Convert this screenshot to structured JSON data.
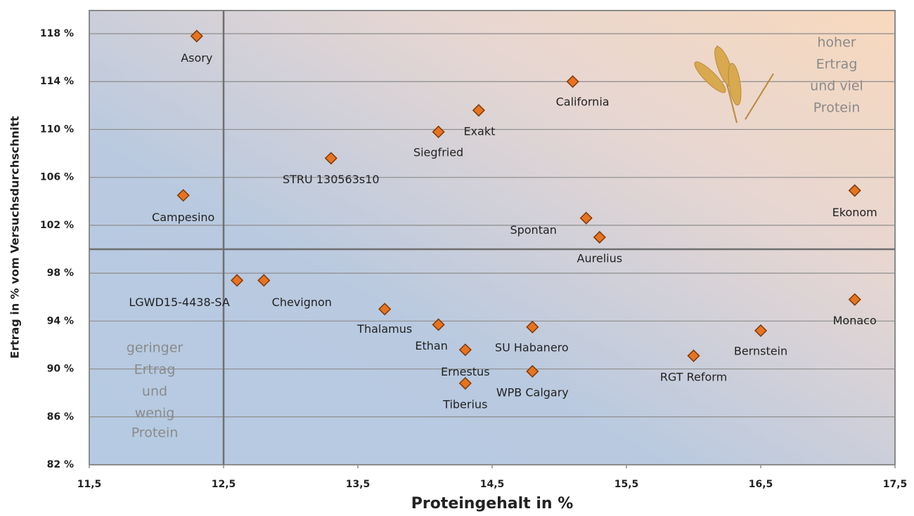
{
  "chart_data": {
    "type": "scatter",
    "x_label": "Proteingehalt in %",
    "y_label": "Ertrag in % vom Versuchsdurchschnitt",
    "xlim": [
      11.5,
      17.5
    ],
    "ylim": [
      82,
      118
    ],
    "xticks": [
      {
        "value": 11.5,
        "label": "11,5"
      },
      {
        "value": 12.5,
        "label": "12,5"
      },
      {
        "value": 13.5,
        "label": "13,5"
      },
      {
        "value": 14.5,
        "label": "14,5"
      },
      {
        "value": 15.5,
        "label": "15,5"
      },
      {
        "value": 16.5,
        "label": "16,5"
      },
      {
        "value": 17.5,
        "label": "17,5"
      }
    ],
    "yticks": [
      {
        "value": 82,
        "label": "82 %"
      },
      {
        "value": 86,
        "label": "86 %"
      },
      {
        "value": 90,
        "label": "90 %"
      },
      {
        "value": 94,
        "label": "94 %"
      },
      {
        "value": 98,
        "label": "98 %"
      },
      {
        "value": 102,
        "label": "102 %"
      },
      {
        "value": 106,
        "label": "106 %"
      },
      {
        "value": 110,
        "label": "110 %"
      },
      {
        "value": 114,
        "label": "114 %"
      },
      {
        "value": 118,
        "label": "118 %"
      }
    ],
    "grid": true,
    "reference_lines": {
      "x": 12.5,
      "y": 100
    },
    "color": "#e8731f",
    "points": [
      {
        "label": "Asory",
        "x": 12.3,
        "y": 117.8
      },
      {
        "label": "California",
        "x": 15.1,
        "y": 114.0
      },
      {
        "label": "Exakt",
        "x": 14.4,
        "y": 111.6
      },
      {
        "label": "Siegfried",
        "x": 14.1,
        "y": 109.8
      },
      {
        "label": "STRU 130563s10",
        "x": 13.3,
        "y": 107.6
      },
      {
        "label": "Campesino",
        "x": 12.2,
        "y": 104.5
      },
      {
        "label": "Ekonom",
        "x": 17.2,
        "y": 104.9
      },
      {
        "label": "Spontan",
        "x": 15.2,
        "y": 102.6
      },
      {
        "label": "Aurelius",
        "x": 15.3,
        "y": 101.0
      },
      {
        "label": "LGWD15-4438-SA",
        "x": 12.6,
        "y": 97.4
      },
      {
        "label": "Chevignon",
        "x": 12.8,
        "y": 97.4
      },
      {
        "label": "Thalamus",
        "x": 13.7,
        "y": 95.0
      },
      {
        "label": "Ethan",
        "x": 14.1,
        "y": 93.7
      },
      {
        "label": "SU Habanero",
        "x": 14.8,
        "y": 93.5
      },
      {
        "label": "Ernestus",
        "x": 14.3,
        "y": 91.6
      },
      {
        "label": "WPB Calgary",
        "x": 14.8,
        "y": 89.8
      },
      {
        "label": "Tiberius",
        "x": 14.3,
        "y": 88.8
      },
      {
        "label": "RGT Reform",
        "x": 16.0,
        "y": 91.1
      },
      {
        "label": "Bernstein",
        "x": 16.5,
        "y": 93.2
      },
      {
        "label": "Monaco",
        "x": 17.2,
        "y": 95.8
      }
    ]
  },
  "annotations": [
    {
      "lines": [
        "hoher",
        "Ertrag",
        "und viel",
        "Protein"
      ]
    },
    {
      "lines": [
        "geringer",
        "Ertrag",
        "und",
        "wenig",
        "Protein"
      ]
    }
  ]
}
